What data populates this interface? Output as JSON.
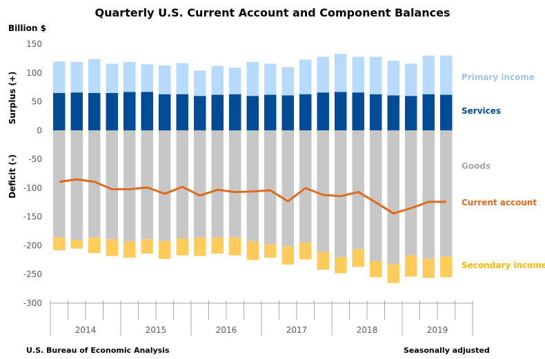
{
  "chart_data": {
    "type": "bar",
    "title": "Quarterly U.S. Current Account and Component Balances",
    "ylabel": "Billion $",
    "ylabel_positive": "Surplus (+)",
    "ylabel_negative": "Deficit (-)",
    "ylim": [
      -300,
      150
    ],
    "yticks": [
      150,
      100,
      50,
      0,
      -50,
      -100,
      -150,
      -200,
      -250,
      -300
    ],
    "years": [
      "2014",
      "2015",
      "2016",
      "2017",
      "2018",
      "2019"
    ],
    "quarters_per_year": 4,
    "categories": [
      "2014Q1",
      "2014Q2",
      "2014Q3",
      "2014Q4",
      "2015Q1",
      "2015Q2",
      "2015Q3",
      "2015Q4",
      "2016Q1",
      "2016Q2",
      "2016Q3",
      "2016Q4",
      "2017Q1",
      "2017Q2",
      "2017Q3",
      "2017Q4",
      "2018Q1",
      "2018Q2",
      "2018Q3",
      "2018Q4",
      "2019Q1",
      "2019Q2",
      "2019Q3"
    ],
    "series": [
      {
        "name": "Services",
        "kind": "bar",
        "color": "#004C97",
        "values": [
          65,
          66,
          65,
          65,
          67,
          67,
          63,
          63,
          60,
          62,
          63,
          60,
          62,
          61,
          63,
          66,
          67,
          66,
          63,
          61,
          60,
          63,
          62
        ]
      },
      {
        "name": "Primary income",
        "kind": "bar",
        "color": "#B7DAFD",
        "label_color": "#9DC3E6",
        "values": [
          55,
          53,
          59,
          51,
          52,
          48,
          50,
          54,
          44,
          50,
          46,
          59,
          54,
          49,
          60,
          62,
          66,
          62,
          65,
          60,
          56,
          67,
          68
        ]
      },
      {
        "name": "Goods",
        "kind": "bar",
        "color": "#C6C7C6",
        "label_color": "#A5A5A5",
        "values": [
          -186,
          -190,
          -186,
          -189,
          -193,
          -189,
          -192,
          -188,
          -186,
          -186,
          -186,
          -193,
          -198,
          -201,
          -195,
          -211,
          -220,
          -206,
          -227,
          -232,
          -217,
          -223,
          -219
        ]
      },
      {
        "name": "Secondary income",
        "kind": "bar",
        "color": "#FFCC5C",
        "label_color": "#FFB800",
        "values": [
          -22,
          -15,
          -27,
          -29,
          -28,
          -25,
          -31,
          -29,
          -32,
          -28,
          -31,
          -32,
          -23,
          -32,
          -29,
          -31,
          -28,
          -31,
          -28,
          -33,
          -37,
          -33,
          -36
        ]
      },
      {
        "name": "Current account",
        "kind": "line",
        "color": "#E06A1B",
        "values": [
          -89,
          -85,
          -89,
          -102,
          -102,
          -99,
          -110,
          -98,
          -113,
          -103,
          -107,
          -106,
          -104,
          -123,
          -100,
          -112,
          -114,
          -107,
          -125,
          -144,
          -135,
          -124,
          -124
        ]
      }
    ],
    "legend": "right (direct labels)",
    "grid": false
  },
  "footer": {
    "source": "U.S. Bureau of Economic Analysis",
    "note": "Seasonally adjusted"
  }
}
